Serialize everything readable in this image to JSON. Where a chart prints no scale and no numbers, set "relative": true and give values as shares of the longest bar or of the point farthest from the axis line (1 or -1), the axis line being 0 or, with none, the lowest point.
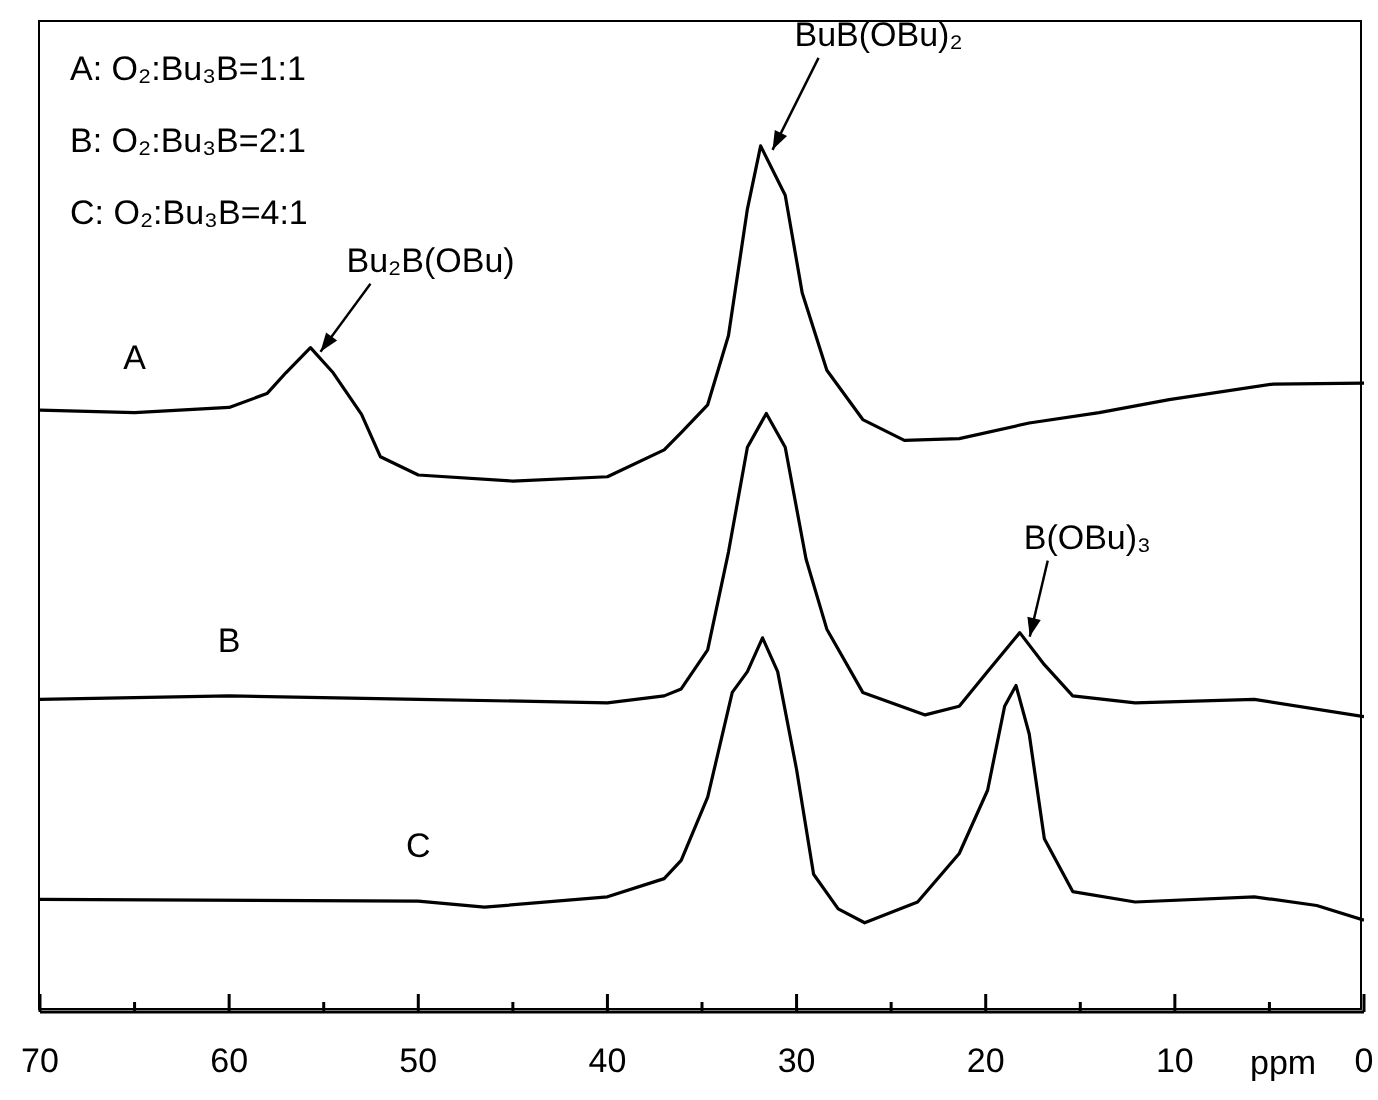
{
  "chart_data": {
    "type": "line",
    "relative": true,
    "xlabel": "ppm",
    "xlim": [
      70,
      0
    ],
    "xticks": [
      70,
      {
        "value": 65,
        "label": null
      },
      60,
      {
        "value": 55,
        "label": null
      },
      50,
      {
        "value": 45,
        "label": null
      },
      40,
      {
        "value": 35,
        "label": null
      },
      30,
      {
        "value": 25,
        "label": null
      },
      20,
      {
        "value": 15,
        "label": null
      },
      10,
      {
        "value": 5,
        "label": null
      },
      0
    ],
    "marker": "none",
    "line_style": "solid",
    "series": [
      {
        "name": "A",
        "color": "#000000",
        "x": [
          70,
          65,
          60,
          58,
          57,
          55.7,
          54.5,
          53,
          52,
          50,
          45,
          40,
          37,
          36.1,
          34.7,
          33.6,
          32.6,
          31.9,
          30.6,
          29.7,
          28.4,
          26.5,
          24.3,
          21.4,
          17.7,
          14,
          10.3,
          4.8,
          0
        ],
        "values": [
          0.695,
          0.692,
          0.698,
          0.714,
          0.738,
          0.767,
          0.738,
          0.69,
          0.641,
          0.62,
          0.613,
          0.618,
          0.649,
          0.669,
          0.701,
          0.781,
          0.927,
          1.0,
          0.943,
          0.83,
          0.741,
          0.684,
          0.66,
          0.662,
          0.68,
          0.692,
          0.707,
          0.725,
          0.726
        ]
      },
      {
        "name": "B",
        "color": "#000000",
        "x": [
          70,
          60,
          50,
          40,
          37,
          36.1,
          34.7,
          33.6,
          32.6,
          31.6,
          30.6,
          29.5,
          28.4,
          26.5,
          23.2,
          21.4,
          19.9,
          18.2,
          16.9,
          15.4,
          12.1,
          5.8,
          0
        ],
        "values": [
          0.361,
          0.365,
          0.361,
          0.357,
          0.365,
          0.373,
          0.418,
          0.531,
          0.652,
          0.691,
          0.652,
          0.523,
          0.442,
          0.369,
          0.343,
          0.353,
          0.393,
          0.438,
          0.401,
          0.365,
          0.357,
          0.361,
          0.341
        ]
      },
      {
        "name": "C",
        "color": "#000000",
        "x": [
          70,
          50,
          46.5,
          40,
          37,
          36.1,
          34.7,
          33.4,
          32.6,
          31.8,
          31.0,
          30.0,
          29.1,
          27.8,
          26.4,
          23.6,
          21.4,
          19.9,
          19.0,
          18.4,
          17.7,
          16.9,
          15.4,
          12.1,
          5.8,
          2.5,
          0
        ],
        "values": [
          0.13,
          0.128,
          0.121,
          0.133,
          0.154,
          0.175,
          0.248,
          0.369,
          0.393,
          0.432,
          0.393,
          0.28,
          0.159,
          0.119,
          0.103,
          0.127,
          0.183,
          0.256,
          0.353,
          0.377,
          0.321,
          0.2,
          0.139,
          0.127,
          0.133,
          0.123,
          0.106
        ]
      }
    ],
    "annotations": [
      "A: O₂:Bu₃B=1:1",
      "B: O₂:Bu₃B=2:1",
      "C: O₂:Bu₃B=4:1",
      {
        "text": "Bu₂B(OBu)",
        "x": 55.7,
        "y": 0.767
      },
      {
        "text": "BuB(OBu)₂",
        "x": 31.8,
        "y": 1.0
      },
      {
        "text": "B(OBu)₃",
        "x": 18.2,
        "y": 0.438
      }
    ]
  }
}
